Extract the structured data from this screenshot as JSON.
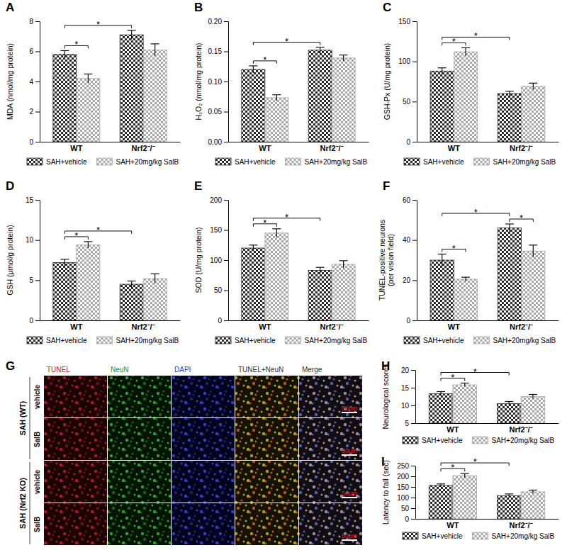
{
  "chart_data": [
    {
      "type": "bar",
      "title": "A",
      "ylabel": "MDA (nmol/mg protein)",
      "categories": [
        "WT",
        "Nrf2⁻/⁻"
      ],
      "series": [
        {
          "name": "SAH+vehicle",
          "color": "#2b2b2b",
          "values": [
            5.8,
            7.1
          ],
          "errors": [
            0.25,
            0.3
          ]
        },
        {
          "name": "SAH+20mg/kg SalB",
          "color": "#a8a8a8",
          "values": [
            4.2,
            6.1
          ],
          "errors": [
            0.3,
            0.4
          ]
        }
      ],
      "ylim": [
        0,
        8
      ],
      "yticks": [
        0,
        2,
        4,
        6,
        8
      ],
      "grid": false,
      "legend": "bottom",
      "significance": [
        {
          "between": [
            [
              0,
              0
            ],
            [
              1,
              0
            ]
          ],
          "label": "*"
        },
        {
          "between": [
            [
              0,
              0
            ],
            [
              0,
              1
            ]
          ],
          "label": "*"
        }
      ]
    },
    {
      "type": "bar",
      "title": "B",
      "ylabel": "H₂O₂ (nmol/mg protein)",
      "categories": [
        "WT",
        "Nrf2⁻/⁻"
      ],
      "series": [
        {
          "name": "SAH+vehicle",
          "color": "#2b2b2b",
          "values": [
            0.12,
            0.152
          ],
          "errors": [
            0.006,
            0.005
          ]
        },
        {
          "name": "SAH+20mg/kg SalB",
          "color": "#a8a8a8",
          "values": [
            0.073,
            0.139
          ],
          "errors": [
            0.005,
            0.005
          ]
        }
      ],
      "ylim": [
        0,
        0.2
      ],
      "yticks": [
        {
          "value": 0,
          "label": "0.00"
        },
        {
          "value": 0.05,
          "label": "0.05"
        },
        {
          "value": 0.1,
          "label": "0.10"
        },
        {
          "value": 0.15,
          "label": "0.15"
        },
        {
          "value": 0.2,
          "label": "0.20"
        }
      ],
      "grid": false,
      "legend": "bottom",
      "significance": [
        {
          "between": [
            [
              0,
              0
            ],
            [
              1,
              0
            ]
          ],
          "label": "*"
        },
        {
          "between": [
            [
              0,
              0
            ],
            [
              0,
              1
            ]
          ],
          "label": "*"
        }
      ]
    },
    {
      "type": "bar",
      "title": "C",
      "ylabel": "GSH-Px (U/mg protein)",
      "categories": [
        "WT",
        "Nrf2⁻/⁻"
      ],
      "series": [
        {
          "name": "SAH+vehicle",
          "color": "#2b2b2b",
          "values": [
            88,
            60
          ],
          "errors": [
            4,
            3
          ]
        },
        {
          "name": "SAH+20mg/kg SalB",
          "color": "#a8a8a8",
          "values": [
            112,
            69
          ],
          "errors": [
            5,
            4
          ]
        }
      ],
      "ylim": [
        0,
        150
      ],
      "yticks": [
        0,
        50,
        100,
        150
      ],
      "grid": false,
      "legend": "bottom",
      "significance": [
        {
          "between": [
            [
              0,
              0
            ],
            [
              1,
              0
            ]
          ],
          "label": "*"
        },
        {
          "between": [
            [
              0,
              0
            ],
            [
              0,
              1
            ]
          ],
          "label": "*"
        }
      ]
    },
    {
      "type": "bar",
      "title": "D",
      "ylabel": "GSH (μmol/g protein)",
      "categories": [
        "WT",
        "Nrf2⁻/⁻"
      ],
      "series": [
        {
          "name": "SAH+vehicle",
          "color": "#2b2b2b",
          "values": [
            7.2,
            4.5
          ],
          "errors": [
            0.4,
            0.4
          ]
        },
        {
          "name": "SAH+20mg/kg SalB",
          "color": "#a8a8a8",
          "values": [
            9.4,
            5.2
          ],
          "errors": [
            0.4,
            0.6
          ]
        }
      ],
      "ylim": [
        0,
        15
      ],
      "yticks": [
        0,
        5,
        10,
        15
      ],
      "grid": false,
      "legend": "bottom",
      "significance": [
        {
          "between": [
            [
              0,
              0
            ],
            [
              1,
              0
            ]
          ],
          "label": "*"
        },
        {
          "between": [
            [
              0,
              0
            ],
            [
              0,
              1
            ]
          ],
          "label": "*"
        }
      ]
    },
    {
      "type": "bar",
      "title": "E",
      "ylabel": "SOD (U/mg protein)",
      "categories": [
        "WT",
        "Nrf2⁻/⁻"
      ],
      "series": [
        {
          "name": "SAH+vehicle",
          "color": "#2b2b2b",
          "values": [
            120,
            83
          ],
          "errors": [
            5,
            5
          ]
        },
        {
          "name": "SAH+20mg/kg SalB",
          "color": "#a8a8a8",
          "values": [
            145,
            93
          ],
          "errors": [
            7,
            6
          ]
        }
      ],
      "ylim": [
        0,
        200
      ],
      "yticks": [
        0,
        50,
        100,
        150,
        200
      ],
      "grid": false,
      "legend": "bottom",
      "significance": [
        {
          "between": [
            [
              0,
              0
            ],
            [
              1,
              0
            ]
          ],
          "label": "*"
        },
        {
          "between": [
            [
              0,
              0
            ],
            [
              0,
              1
            ]
          ],
          "label": "*"
        }
      ]
    },
    {
      "type": "bar",
      "title": "F",
      "ylabel": [
        "TUNEL-positive neurons",
        "(per vision field)"
      ],
      "categories": [
        "WT",
        "Nrf2⁻/⁻"
      ],
      "series": [
        {
          "name": "SAH+vehicle",
          "color": "#2b2b2b",
          "values": [
            30,
            46
          ],
          "errors": [
            3,
            2
          ]
        },
        {
          "name": "SAH+20mg/kg SalB",
          "color": "#a8a8a8",
          "values": [
            20.5,
            34.5
          ],
          "errors": [
            1,
            3
          ]
        }
      ],
      "ylim": [
        0,
        60
      ],
      "yticks": [
        0,
        20,
        40,
        60
      ],
      "grid": false,
      "legend": "bottom",
      "significance": [
        {
          "between": [
            [
              0,
              0
            ],
            [
              1,
              0
            ]
          ],
          "label": "*"
        },
        {
          "between": [
            [
              0,
              1
            ],
            [
              1,
              1
            ]
          ],
          "label": "*"
        },
        {
          "between": [
            [
              0,
              0
            ],
            [
              0,
              1
            ]
          ],
          "label": "*"
        }
      ]
    },
    {
      "type": "bar",
      "title": "H",
      "ylabel": "Neurological scores",
      "categories": [
        "WT",
        "Nrf2⁻/⁻"
      ],
      "series": [
        {
          "name": "SAH+vehicle",
          "color": "#2b2b2b",
          "values": [
            13.3,
            10.5
          ],
          "errors": [
            0.6,
            0.6
          ]
        },
        {
          "name": "SAH+20mg/kg SalB",
          "color": "#a8a8a8",
          "values": [
            15.8,
            12.5
          ],
          "errors": [
            0.5,
            0.6
          ]
        }
      ],
      "ylim": [
        5,
        20
      ],
      "yticks": [
        5,
        10,
        15,
        20
      ],
      "grid": false,
      "legend": "bottom",
      "significance": [
        {
          "between": [
            [
              0,
              0
            ],
            [
              1,
              0
            ]
          ],
          "label": "*"
        },
        {
          "between": [
            [
              0,
              0
            ],
            [
              0,
              1
            ]
          ],
          "label": "*"
        }
      ]
    },
    {
      "type": "bar",
      "title": "I",
      "ylabel": "Latency to fall (sec)",
      "categories": [
        "WT",
        "Nrf2⁻/⁻"
      ],
      "series": [
        {
          "name": "SAH+vehicle",
          "color": "#2b2b2b",
          "values": [
            157,
            108
          ],
          "errors": [
            7,
            9
          ]
        },
        {
          "name": "SAH+20mg/kg SalB",
          "color": "#a8a8a8",
          "values": [
            203,
            127
          ],
          "errors": [
            10,
            8
          ]
        }
      ],
      "ylim": [
        0,
        250
      ],
      "yticks": [
        0,
        50,
        100,
        150,
        200,
        250
      ],
      "grid": false,
      "legend": "bottom",
      "significance": [
        {
          "between": [
            [
              0,
              0
            ],
            [
              1,
              0
            ]
          ],
          "label": "*"
        },
        {
          "between": [
            [
              0,
              0
            ],
            [
              0,
              1
            ]
          ],
          "label": "*"
        }
      ]
    }
  ],
  "image_panel": {
    "title": "G",
    "columns": [
      "TUNEL",
      "NeuN",
      "DAPI",
      "TUNEL+NeuN",
      "Merge"
    ],
    "groups": [
      "SAH (WT)",
      "SAH (Nrf2 KO)"
    ],
    "rows": [
      "vehicle",
      "SalB",
      "vehicle",
      "SalB"
    ],
    "scale_bar": "50μm"
  }
}
